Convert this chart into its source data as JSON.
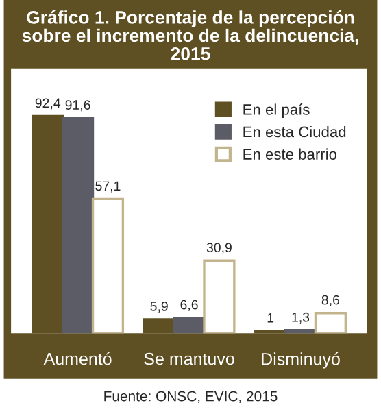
{
  "chart_data": {
    "type": "bar",
    "title": "Gráfico 1. Porcentaje de la percepción sobre el incremento de la delincuencia, 2015",
    "categories": [
      "Aumentó",
      "Se mantuvo",
      "Disminuyó"
    ],
    "series": [
      {
        "name": "En el país",
        "color": "#5e5022",
        "values": [
          92.4,
          5.9,
          1
        ],
        "value_labels": [
          "92,4",
          "5,9",
          "1"
        ]
      },
      {
        "name": "En esta Ciudad",
        "color": "#5c5c66",
        "values": [
          91.6,
          6.6,
          1.3
        ],
        "value_labels": [
          "91,6",
          "6,6",
          "1,3"
        ]
      },
      {
        "name": "En este barrio",
        "color": "#ffffff",
        "values": [
          57.1,
          30.9,
          8.6
        ],
        "value_labels": [
          "57,1",
          "30,9",
          "8,6"
        ]
      }
    ],
    "legend": "top right",
    "grid": false,
    "annotations": [
      "Fuente: ONSC, EVIC, 2015"
    ]
  }
}
